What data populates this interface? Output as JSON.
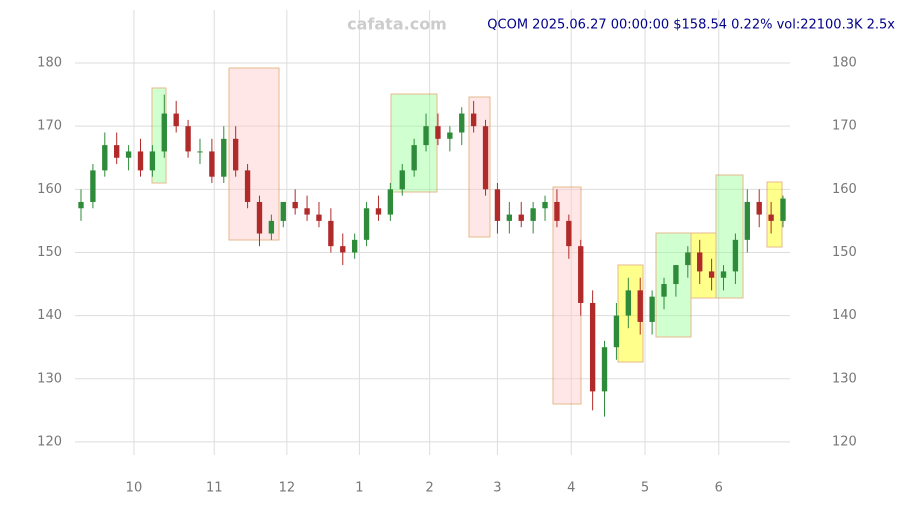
{
  "chart_data": {
    "type": "candlestick",
    "watermark": "cafata.com",
    "title": "QCOM 2025.06.27 00:00:00 $158.54 0.22% vol:22100.3K 2.5x",
    "xlim": [
      0,
      59
    ],
    "xticks": [
      {
        "value": 4.45,
        "label": "10"
      },
      {
        "value": 11.2,
        "label": "11"
      },
      {
        "value": 17.3,
        "label": "12"
      },
      {
        "value": 23.4,
        "label": "1"
      },
      {
        "value": 29.3,
        "label": "2"
      },
      {
        "value": 35,
        "label": "3"
      },
      {
        "value": 41.2,
        "label": "4"
      },
      {
        "value": 47.4,
        "label": "5"
      },
      {
        "value": 53.6,
        "label": "6"
      }
    ],
    "ylim": [
      118.4,
      188.4
    ],
    "yticks": [
      120,
      130,
      140,
      150,
      160,
      170,
      180
    ],
    "grid": true,
    "up_color": "#2e8b3a",
    "down_color": "#b02a2a",
    "open": [
      157,
      158,
      163,
      167,
      165,
      166,
      163,
      166,
      172,
      170,
      166,
      166,
      162,
      168,
      163,
      158,
      153,
      155,
      158,
      157,
      156,
      155,
      151,
      150,
      152,
      157,
      156,
      160,
      163,
      167,
      170,
      168,
      169,
      172,
      170,
      160,
      155,
      156,
      155,
      157,
      158,
      155,
      151,
      142,
      128,
      135,
      140,
      144,
      139,
      143,
      145,
      148,
      150,
      147,
      146,
      147,
      152,
      158,
      156,
      155
    ],
    "high": [
      160,
      164,
      169,
      169,
      167,
      168,
      167,
      175,
      174,
      171,
      168,
      168,
      170,
      170,
      164,
      159,
      156,
      158,
      160,
      159,
      158,
      157,
      153,
      153,
      158,
      159,
      161,
      164,
      168,
      172,
      172,
      170,
      173,
      174,
      171,
      161,
      158,
      158,
      158,
      159,
      160,
      156,
      152,
      144,
      136,
      142,
      146,
      146,
      144,
      146,
      148,
      151,
      152,
      149,
      148,
      153,
      160,
      160,
      158,
      159
    ],
    "low": [
      155,
      157,
      162,
      164,
      163,
      162,
      162,
      165,
      169,
      165,
      164,
      161,
      161,
      162,
      157,
      151,
      152,
      154,
      156,
      155,
      154,
      150,
      148,
      149,
      151,
      155,
      155,
      159,
      162,
      166,
      167,
      166,
      167,
      169,
      159,
      153,
      153,
      154,
      153,
      155,
      154,
      149,
      140,
      125,
      124,
      133,
      138,
      137,
      137,
      141,
      143,
      146,
      145,
      144,
      144,
      145,
      150,
      154,
      153,
      154
    ],
    "close": [
      158,
      163,
      167,
      165,
      166,
      163,
      166,
      172,
      170,
      166,
      166,
      162,
      168,
      163,
      158,
      153,
      155,
      158,
      157,
      156,
      155,
      151,
      150,
      152,
      157,
      156,
      160,
      163,
      167,
      170,
      168,
      169,
      172,
      170,
      160,
      155,
      156,
      155,
      157,
      158,
      155,
      151,
      142,
      128,
      135,
      140,
      144,
      139,
      143,
      145,
      148,
      150,
      147,
      146,
      147,
      152,
      158,
      156,
      155,
      158.54
    ]
  }
}
